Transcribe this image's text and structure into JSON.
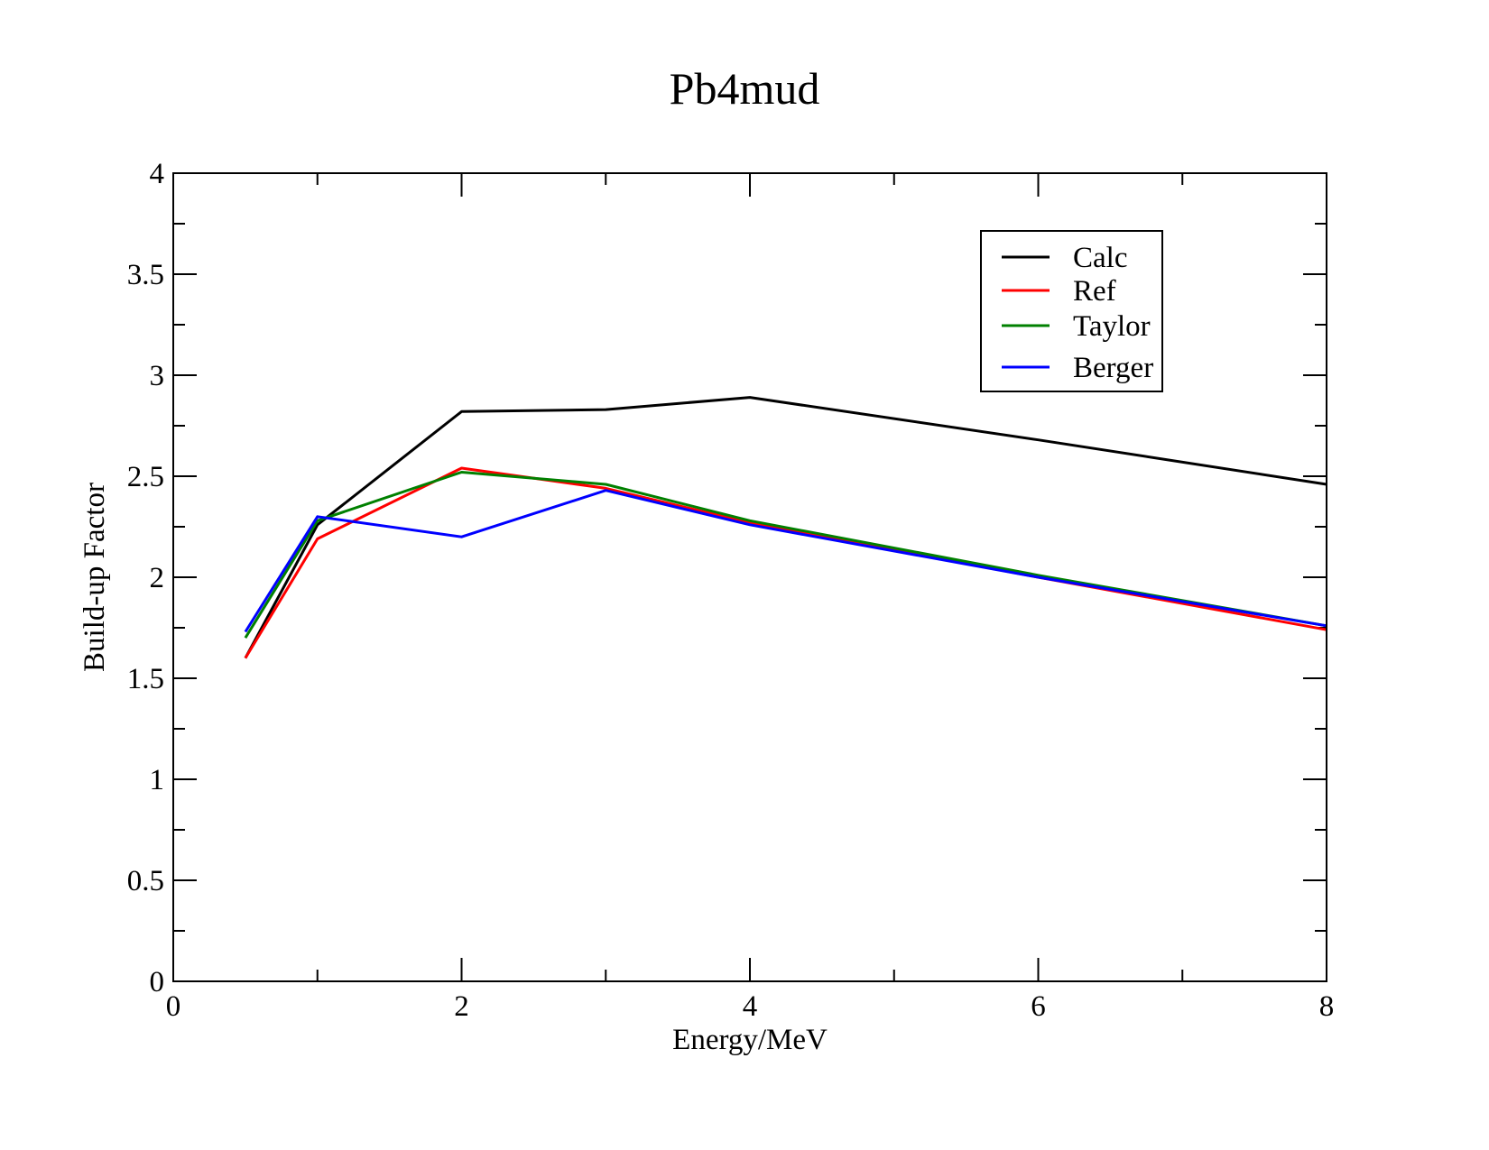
{
  "chart_data": {
    "type": "line",
    "title": "Pb4mud",
    "xlabel": "Energy/MeV",
    "ylabel": "Build-up Factor",
    "xlim": [
      0,
      8
    ],
    "ylim": [
      0,
      4
    ],
    "x_ticks": [
      0,
      2,
      4,
      6,
      8
    ],
    "x_tick_labels": [
      "0",
      "2",
      "4",
      "6",
      "8"
    ],
    "y_ticks": [
      0,
      0.5,
      1,
      1.5,
      2,
      2.5,
      3,
      3.5,
      4
    ],
    "y_tick_labels": [
      "0",
      "0.5",
      "1",
      "1.5",
      "2",
      "2.5",
      "3",
      "3.5",
      "4"
    ],
    "grid": false,
    "legend_position": "top-right",
    "x": [
      0.5,
      1,
      2,
      3,
      4,
      6,
      8
    ],
    "series": [
      {
        "name": "Calc",
        "color": "#000000",
        "values": [
          1.6,
          2.26,
          2.82,
          2.83,
          2.89,
          2.68,
          2.46
        ]
      },
      {
        "name": "Ref",
        "color": "#ff0000",
        "values": [
          1.6,
          2.19,
          2.54,
          2.44,
          2.27,
          2.0,
          1.74
        ]
      },
      {
        "name": "Taylor",
        "color": "#008000",
        "values": [
          1.7,
          2.28,
          2.52,
          2.46,
          2.28,
          2.01,
          1.76
        ]
      },
      {
        "name": "Berger",
        "color": "#0000ff",
        "values": [
          1.73,
          2.3,
          2.2,
          2.43,
          2.26,
          2.0,
          1.76
        ]
      }
    ]
  }
}
